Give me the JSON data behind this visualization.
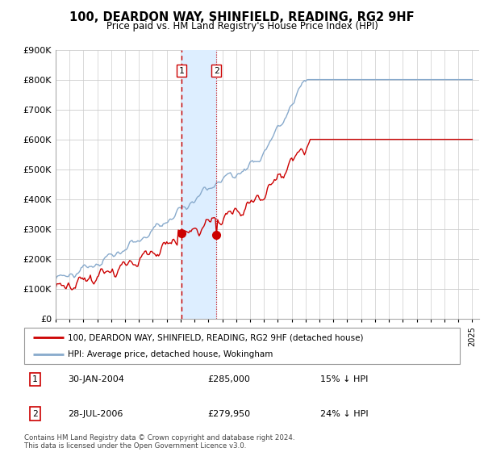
{
  "title": "100, DEARDON WAY, SHINFIELD, READING, RG2 9HF",
  "subtitle": "Price paid vs. HM Land Registry's House Price Index (HPI)",
  "ylabel_ticks": [
    "£0",
    "£100K",
    "£200K",
    "£300K",
    "£400K",
    "£500K",
    "£600K",
    "£700K",
    "£800K",
    "£900K"
  ],
  "ylim": [
    0,
    900000
  ],
  "xlim_start": 1995.0,
  "xlim_end": 2025.5,
  "transaction1": {
    "date_num": 2004.08,
    "price": 285000,
    "label": "1",
    "date_str": "30-JAN-2004",
    "hpi_diff": "15% ↓ HPI"
  },
  "transaction2": {
    "date_num": 2006.57,
    "price": 279950,
    "label": "2",
    "date_str": "28-JUL-2006",
    "hpi_diff": "24% ↓ HPI"
  },
  "legend_property": "100, DEARDON WAY, SHINFIELD, READING, RG2 9HF (detached house)",
  "legend_hpi": "HPI: Average price, detached house, Wokingham",
  "footer": "Contains HM Land Registry data © Crown copyright and database right 2024.\nThis data is licensed under the Open Government Licence v3.0.",
  "property_color": "#cc0000",
  "hpi_color": "#88aacc",
  "highlight_color": "#ddeeff",
  "background_color": "#ffffff",
  "grid_color": "#cccccc",
  "label_border_color": "#cc0000"
}
